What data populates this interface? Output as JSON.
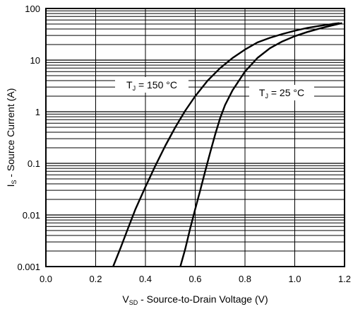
{
  "chart_data": {
    "type": "line",
    "xlabel": {
      "prefix": "V",
      "subscript": "SD",
      "text": " - Source-to-Drain Voltage (V)"
    },
    "ylabel": {
      "prefix": "I",
      "subscript": "S",
      "text": " - Source Current (A)"
    },
    "xlim": [
      0.0,
      1.2
    ],
    "ylim": [
      0.001,
      100
    ],
    "yscale": "log",
    "grid": true,
    "x_ticks": [
      {
        "value": 0.0,
        "label": "0.0"
      },
      {
        "value": 0.2,
        "label": "0.2"
      },
      {
        "value": 0.4,
        "label": "0.4"
      },
      {
        "value": 0.6,
        "label": "0.6"
      },
      {
        "value": 0.8,
        "label": "0.8"
      },
      {
        "value": 1.0,
        "label": "1.0"
      },
      {
        "value": 1.2,
        "label": "1.2"
      }
    ],
    "y_ticks": [
      {
        "value": 100,
        "label": "100"
      },
      {
        "value": 10,
        "label": "10"
      },
      {
        "value": 1,
        "label": "1"
      },
      {
        "value": 0.1,
        "label": "0.1"
      },
      {
        "value": 0.01,
        "label": "0.01"
      },
      {
        "value": 0.001,
        "label": "0.001"
      }
    ],
    "series": [
      {
        "label": {
          "prefix": "T",
          "subscript": "J",
          "text": " = 150 °C"
        },
        "points": [
          [
            0.27,
            0.001
          ],
          [
            0.3,
            0.0023
          ],
          [
            0.33,
            0.0055
          ],
          [
            0.36,
            0.013
          ],
          [
            0.4,
            0.035
          ],
          [
            0.44,
            0.09
          ],
          [
            0.48,
            0.22
          ],
          [
            0.52,
            0.5
          ],
          [
            0.56,
            1.05
          ],
          [
            0.6,
            2.0
          ],
          [
            0.65,
            4.0
          ],
          [
            0.7,
            7.0
          ],
          [
            0.75,
            11.0
          ],
          [
            0.8,
            16.0
          ],
          [
            0.85,
            22.0
          ],
          [
            0.9,
            27.0
          ],
          [
            0.95,
            32.0
          ],
          [
            1.0,
            37.0
          ],
          [
            1.05,
            42.0
          ],
          [
            1.1,
            46.0
          ],
          [
            1.15,
            50.0
          ],
          [
            1.18,
            52.0
          ]
        ]
      },
      {
        "label": {
          "prefix": "T",
          "subscript": "J",
          "text": " = 25 °C"
        },
        "points": [
          [
            0.54,
            0.001
          ],
          [
            0.56,
            0.0022
          ],
          [
            0.58,
            0.0055
          ],
          [
            0.6,
            0.013
          ],
          [
            0.62,
            0.03
          ],
          [
            0.64,
            0.07
          ],
          [
            0.66,
            0.16
          ],
          [
            0.68,
            0.36
          ],
          [
            0.7,
            0.75
          ],
          [
            0.72,
            1.35
          ],
          [
            0.75,
            2.6
          ],
          [
            0.8,
            6.0
          ],
          [
            0.85,
            11.0
          ],
          [
            0.9,
            17.0
          ],
          [
            0.95,
            23.0
          ],
          [
            1.0,
            29.0
          ],
          [
            1.05,
            35.0
          ],
          [
            1.1,
            41.0
          ],
          [
            1.15,
            47.0
          ],
          [
            1.19,
            52.0
          ]
        ]
      }
    ]
  }
}
